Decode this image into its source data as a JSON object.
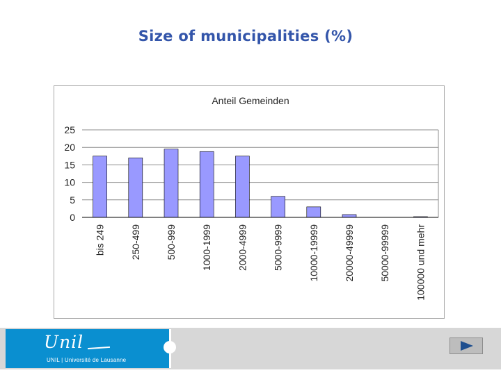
{
  "slide": {
    "title": "Size of municipalities (%)"
  },
  "chart_data": {
    "type": "bar",
    "title": "Anteil Gemeinden",
    "categories": [
      "bis 249",
      "250-499",
      "500-999",
      "1000-1999",
      "2000-4999",
      "5000-9999",
      "10000-19999",
      "20000-49999",
      "50000-99999",
      "100000 und mehr"
    ],
    "values": [
      17.5,
      17,
      19.5,
      18.8,
      17.5,
      6,
      3,
      0.8,
      0,
      0.2
    ],
    "yticks": [
      0,
      5,
      10,
      15,
      20,
      25
    ],
    "ylim": [
      0,
      25
    ],
    "grid": true,
    "legend": "none",
    "bar_color": "#9999ff"
  },
  "footer": {
    "logo_script": "Unil",
    "logo_subtitle": "UNIL | Université de Lausanne",
    "logo_color": "#0a8fd0",
    "next_icon": "play-icon"
  }
}
